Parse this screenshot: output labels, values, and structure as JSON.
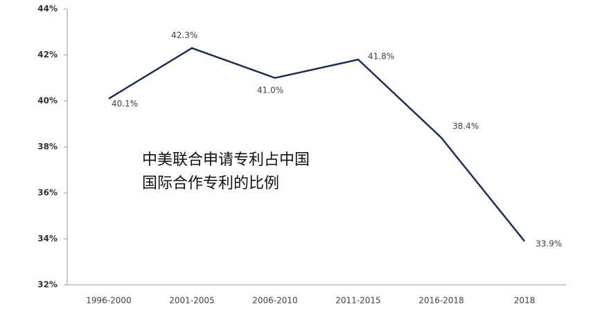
{
  "chart_data": {
    "type": "line",
    "annotations": [
      "中美联合申请专利占中国",
      "国际合作专利的比例"
    ],
    "categories": [
      "1996-2000",
      "2001-2005",
      "2006-2010",
      "2011-2015",
      "2016-2018",
      "2018"
    ],
    "values": [
      40.1,
      42.3,
      41.0,
      41.8,
      38.4,
      33.9
    ],
    "value_labels": [
      "40.1%",
      "42.3%",
      "41.0%",
      "41.8%",
      "38.4%",
      "33.9%"
    ],
    "color": "#1f2d4e",
    "ylim": [
      32,
      44
    ],
    "yticks": [
      {
        "value": 32,
        "label": "32%"
      },
      {
        "value": 34,
        "label": "34%"
      },
      {
        "value": 36,
        "label": "36%"
      },
      {
        "value": 38,
        "label": "38%"
      },
      {
        "value": 40,
        "label": "40%"
      },
      {
        "value": 42,
        "label": "42%"
      },
      {
        "value": 44,
        "label": "44%"
      }
    ],
    "grid": false
  }
}
